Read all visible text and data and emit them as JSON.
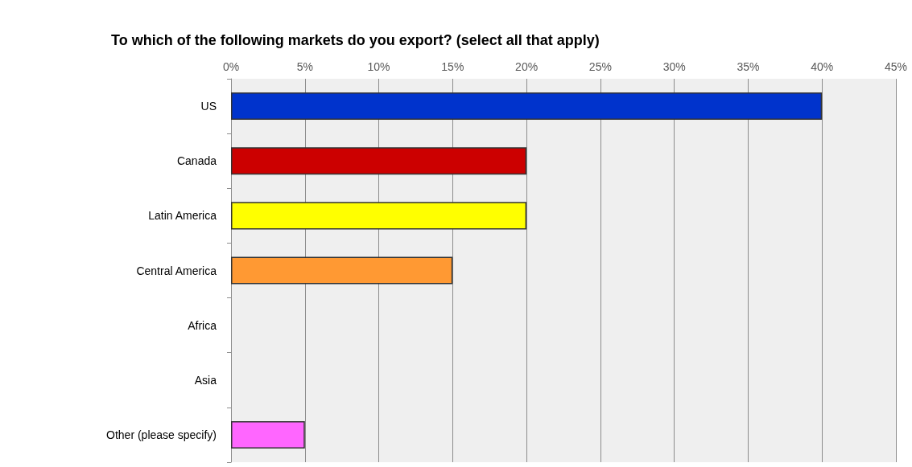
{
  "chart_data": {
    "type": "bar",
    "orientation": "horizontal",
    "title": "To which of the following markets do you export? (select all that apply)",
    "categories": [
      "US",
      "Canada",
      "Latin America",
      "Central America",
      "Africa",
      "Asia",
      "Other (please specify)"
    ],
    "values": [
      40,
      20,
      20,
      15,
      0,
      0,
      5
    ],
    "colors": [
      "#0033cc",
      "#cc0000",
      "#ffff00",
      "#ff9933",
      null,
      null,
      "#ff66ff"
    ],
    "xlim": [
      0,
      45
    ],
    "xticks": [
      {
        "value": 0,
        "label": "0%"
      },
      {
        "value": 5,
        "label": "5%"
      },
      {
        "value": 10,
        "label": "10%"
      },
      {
        "value": 15,
        "label": "15%"
      },
      {
        "value": 20,
        "label": "20%"
      },
      {
        "value": 25,
        "label": "25%"
      },
      {
        "value": 30,
        "label": "30%"
      },
      {
        "value": 35,
        "label": "35%"
      },
      {
        "value": 40,
        "label": "40%"
      },
      {
        "value": 45,
        "label": "45%"
      }
    ],
    "grid": "x"
  }
}
